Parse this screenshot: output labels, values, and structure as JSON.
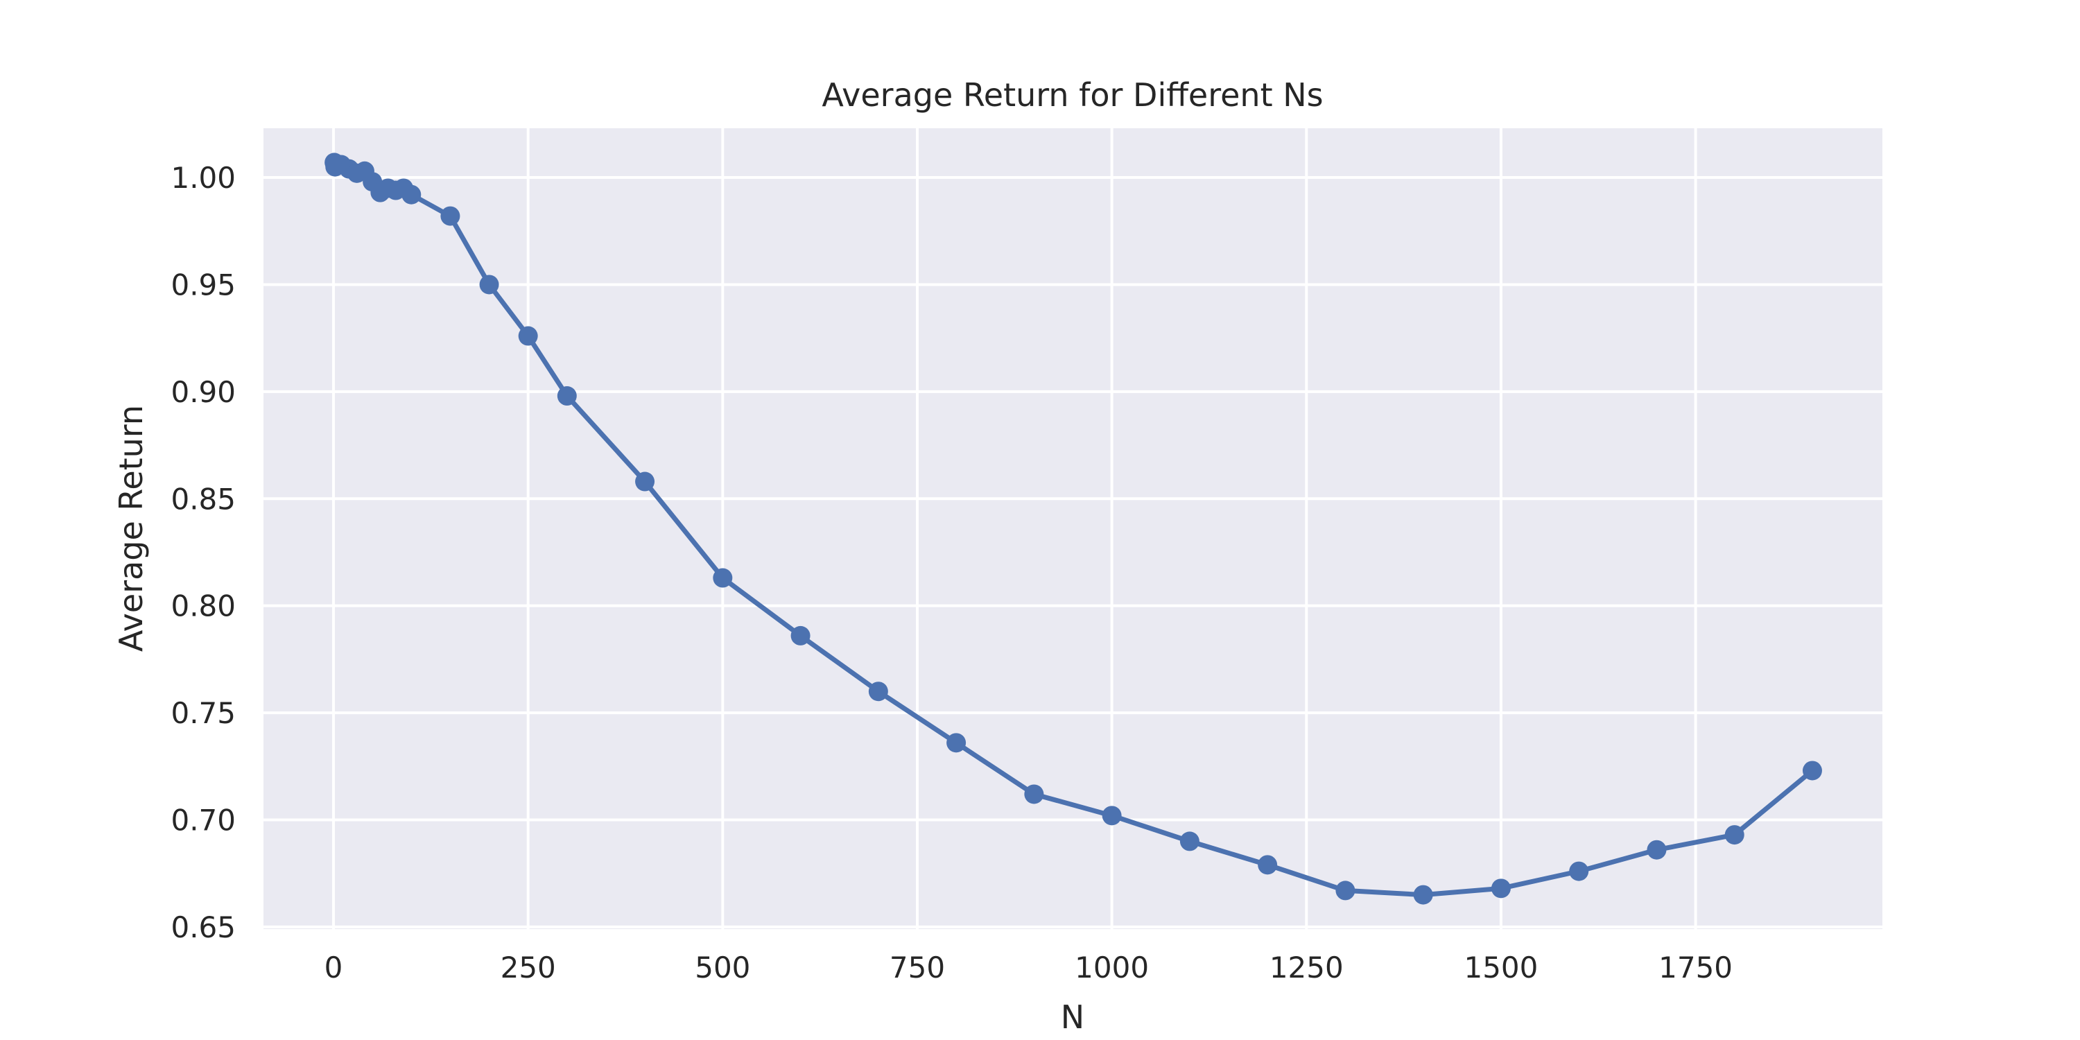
{
  "chart_data": {
    "type": "line",
    "title": "Average Return for Different Ns",
    "xlabel": "N",
    "ylabel": "Average Return",
    "xlim": [
      -90,
      1990
    ],
    "ylim": [
      0.649,
      1.023
    ],
    "xticks": [
      0,
      250,
      500,
      750,
      1000,
      1250,
      1500,
      1750
    ],
    "xtick_labels": [
      "0",
      "250",
      "500",
      "750",
      "1000",
      "1250",
      "1500",
      "1750"
    ],
    "yticks": [
      0.65,
      0.7,
      0.75,
      0.8,
      0.85,
      0.9,
      0.95,
      1.0
    ],
    "ytick_labels": [
      "0.65",
      "0.70",
      "0.75",
      "0.80",
      "0.85",
      "0.90",
      "0.95",
      "1.00"
    ],
    "grid": true,
    "style": {
      "background": "#ffffff",
      "plot_background": "#eaeaf2",
      "grid_color": "#ffffff",
      "series_color": "#4c72b0",
      "text_color": "#262626"
    },
    "series": [
      {
        "marker": "circle",
        "x": [
          1,
          2,
          5,
          10,
          20,
          30,
          40,
          50,
          60,
          70,
          80,
          90,
          100,
          150,
          200,
          250,
          300,
          400,
          500,
          600,
          700,
          800,
          900,
          1000,
          1100,
          1200,
          1300,
          1400,
          1500,
          1600,
          1700,
          1800,
          1900
        ],
        "y": [
          1.007,
          1.005,
          1.006,
          1.006,
          1.004,
          1.002,
          1.003,
          0.998,
          0.993,
          0.995,
          0.994,
          0.995,
          0.992,
          0.982,
          0.95,
          0.926,
          0.898,
          0.858,
          0.813,
          0.786,
          0.76,
          0.736,
          0.712,
          0.702,
          0.69,
          0.679,
          0.667,
          0.665,
          0.668,
          0.676,
          0.686,
          0.693,
          0.723
        ]
      }
    ]
  }
}
